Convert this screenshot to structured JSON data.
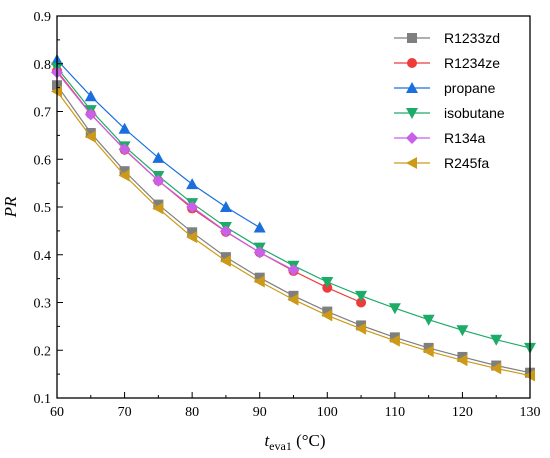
{
  "chart_data": {
    "type": "line",
    "title": "",
    "xlabel_main": "t",
    "xlabel_sub": "eva1",
    "xlabel_unit": " (°C)",
    "ylabel": "PR",
    "xlim": [
      60,
      130
    ],
    "ylim": [
      0.1,
      0.9
    ],
    "xticks": [
      60,
      70,
      80,
      90,
      100,
      110,
      120,
      130
    ],
    "yticks": [
      0.1,
      0.2,
      0.3,
      0.4,
      0.5,
      0.6,
      0.7,
      0.8,
      0.9
    ],
    "xtick_labels": [
      "60",
      "70",
      "80",
      "90",
      "100",
      "110",
      "120",
      "130"
    ],
    "ytick_labels": [
      "0.1",
      "0.2",
      "0.3",
      "0.4",
      "0.5",
      "0.6",
      "0.7",
      "0.8",
      "0.9"
    ],
    "grid": false,
    "legend_position": "top-right",
    "series": [
      {
        "name": "R1233zd",
        "color": "#7f7f7f",
        "marker": "square",
        "x": [
          60,
          65,
          70,
          75,
          80,
          85,
          90,
          95,
          100,
          105,
          110,
          115,
          120,
          125,
          130
        ],
        "y": [
          0.755,
          0.655,
          0.575,
          0.505,
          0.447,
          0.395,
          0.352,
          0.314,
          0.281,
          0.252,
          0.227,
          0.205,
          0.186,
          0.168,
          0.153
        ]
      },
      {
        "name": "R1234ze",
        "color": "#ee3a3a",
        "marker": "circle",
        "x": [
          60,
          65,
          70,
          75,
          80,
          85,
          90,
          95,
          100,
          105
        ],
        "y": [
          0.785,
          0.695,
          0.62,
          0.555,
          0.497,
          0.448,
          0.405,
          0.366,
          0.331,
          0.3
        ]
      },
      {
        "name": "propane",
        "color": "#1a6fdc",
        "marker": "triangle-up",
        "x": [
          60,
          65,
          70,
          75,
          80,
          85,
          90
        ],
        "y": [
          0.808,
          0.732,
          0.664,
          0.603,
          0.548,
          0.5,
          0.457
        ]
      },
      {
        "name": "isobutane",
        "color": "#1dab68",
        "marker": "triangle-down",
        "x": [
          60,
          65,
          70,
          75,
          80,
          85,
          90,
          95,
          100,
          105,
          110,
          115,
          120,
          125,
          130
        ],
        "y": [
          0.792,
          0.703,
          0.627,
          0.565,
          0.508,
          0.458,
          0.415,
          0.377,
          0.343,
          0.314,
          0.288,
          0.264,
          0.242,
          0.222,
          0.205
        ]
      },
      {
        "name": "R134a",
        "color": "#c860e8",
        "marker": "diamond",
        "x": [
          60,
          65,
          70,
          75,
          80,
          85,
          90,
          95
        ],
        "y": [
          0.782,
          0.694,
          0.621,
          0.555,
          0.5,
          0.449,
          0.405,
          0.368
        ]
      },
      {
        "name": "R245fa",
        "color": "#cc9a16",
        "marker": "triangle-left",
        "x": [
          60,
          65,
          70,
          75,
          80,
          85,
          90,
          95,
          100,
          105,
          110,
          115,
          120,
          125,
          130
        ],
        "y": [
          0.742,
          0.647,
          0.566,
          0.497,
          0.437,
          0.387,
          0.344,
          0.306,
          0.273,
          0.245,
          0.22,
          0.198,
          0.179,
          0.162,
          0.147
        ]
      }
    ]
  }
}
